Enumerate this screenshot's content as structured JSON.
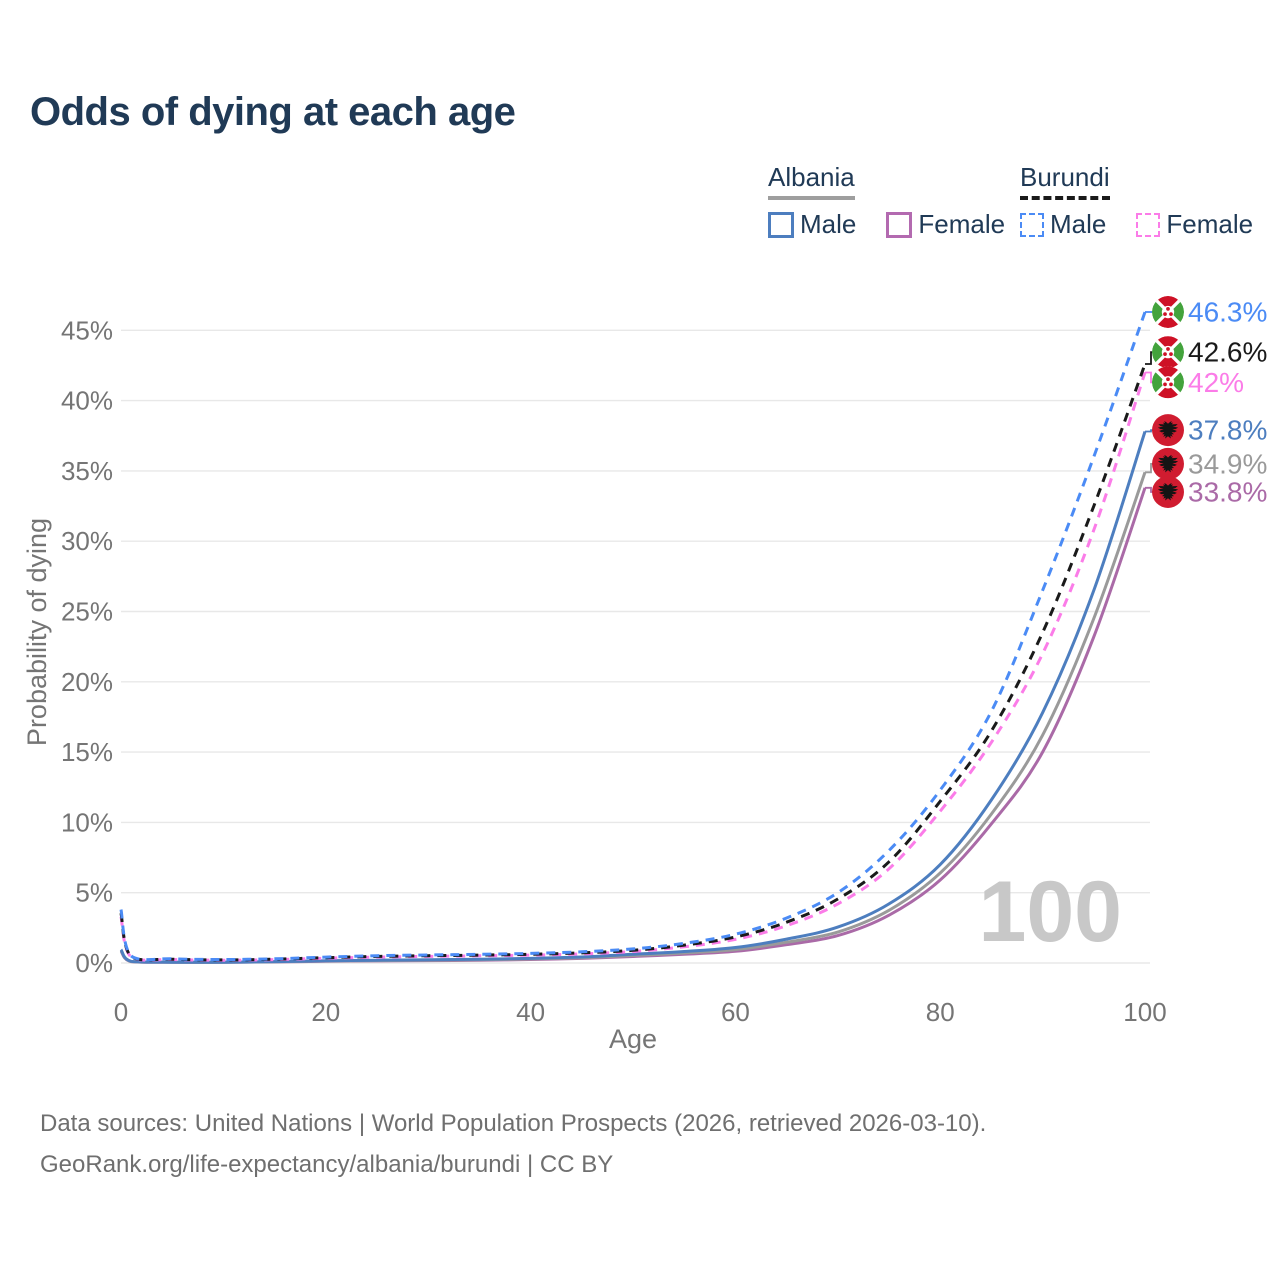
{
  "title": "Odds of dying at each age",
  "legend": {
    "groups": [
      {
        "country": "Albania",
        "line_style": "solid",
        "underline_color": "#9e9e9e",
        "items": [
          {
            "label": "Male",
            "color": "#4d7ebf"
          },
          {
            "label": "Female",
            "color": "#b36ab0"
          }
        ]
      },
      {
        "country": "Burundi",
        "line_style": "dashed",
        "underline_color": "#1a1a1a",
        "items": [
          {
            "label": "Male",
            "color": "#4b8bf5"
          },
          {
            "label": "Female",
            "color": "#fb7ce8"
          }
        ]
      }
    ]
  },
  "chart_data": {
    "type": "line",
    "title": "Odds of dying at each age",
    "xlabel": "Age",
    "ylabel": "Probability of dying",
    "xlim": [
      0,
      100
    ],
    "ylim": [
      0,
      47
    ],
    "grid": "horizontal",
    "legend_position": "top-right",
    "watermark": "100",
    "xticks": [
      0,
      20,
      40,
      60,
      80,
      100
    ],
    "yticks": [
      0,
      5,
      10,
      15,
      20,
      25,
      30,
      35,
      40,
      45
    ],
    "ytick_labels": [
      "0%",
      "5%",
      "10%",
      "15%",
      "20%",
      "25%",
      "30%",
      "35%",
      "40%",
      "45%"
    ],
    "x": [
      0,
      1,
      5,
      10,
      15,
      20,
      25,
      30,
      35,
      40,
      45,
      50,
      55,
      60,
      65,
      70,
      75,
      80,
      85,
      90,
      95,
      100
    ],
    "series": [
      {
        "name": "Burundi Male",
        "country": "burundi",
        "sex": "male",
        "style": "dashed",
        "color": "#4b8bf5",
        "label_color": "#4b8bf5",
        "end_label": "46.3%",
        "end_value": 46.3,
        "label_at": 46.3,
        "values": [
          3.8,
          0.5,
          0.3,
          0.25,
          0.3,
          0.42,
          0.52,
          0.57,
          0.62,
          0.68,
          0.8,
          1.0,
          1.4,
          2.05,
          3.2,
          5.0,
          8.0,
          12.3,
          17.9,
          26.5,
          36.0,
          46.3
        ]
      },
      {
        "name": "Burundi Both sexes",
        "country": "burundi",
        "sex": "both",
        "style": "dashed",
        "color": "#1a1a1a",
        "label_color": "#1a1a1a",
        "end_label": "42.6%",
        "end_value": 42.6,
        "label_at": 43.45,
        "values": [
          3.55,
          0.46,
          0.27,
          0.22,
          0.27,
          0.38,
          0.47,
          0.52,
          0.56,
          0.62,
          0.72,
          0.9,
          1.27,
          1.85,
          2.9,
          4.55,
          7.2,
          11.5,
          16.5,
          23.5,
          32.5,
          42.6
        ]
      },
      {
        "name": "Burundi Female",
        "country": "burundi",
        "sex": "female",
        "style": "dashed",
        "color": "#fb7ce8",
        "label_color": "#fb7ce8",
        "end_label": "42%",
        "end_value": 42.0,
        "label_at": 41.3,
        "values": [
          3.3,
          0.42,
          0.25,
          0.2,
          0.24,
          0.34,
          0.42,
          0.47,
          0.51,
          0.56,
          0.65,
          0.82,
          1.15,
          1.68,
          2.65,
          4.2,
          6.7,
          10.8,
          15.7,
          22.0,
          30.8,
          42.0
        ]
      },
      {
        "name": "Albania Male",
        "country": "albania",
        "sex": "male",
        "style": "solid",
        "color": "#4d7ebf",
        "label_color": "#4d7ebf",
        "end_label": "37.8%",
        "end_value": 37.8,
        "label_at": 37.9,
        "values": [
          0.95,
          0.12,
          0.06,
          0.06,
          0.1,
          0.16,
          0.2,
          0.23,
          0.27,
          0.33,
          0.43,
          0.62,
          0.82,
          1.1,
          1.7,
          2.55,
          4.2,
          7.0,
          11.6,
          17.8,
          26.5,
          37.8
        ]
      },
      {
        "name": "Albania Both sexes",
        "country": "albania",
        "sex": "both",
        "style": "solid",
        "color": "#9a9a9a",
        "label_color": "#9a9a9a",
        "end_label": "34.9%",
        "end_value": 34.9,
        "label_at": 35.5,
        "values": [
          0.9,
          0.11,
          0.06,
          0.05,
          0.09,
          0.14,
          0.17,
          0.2,
          0.23,
          0.29,
          0.38,
          0.53,
          0.71,
          0.95,
          1.48,
          2.2,
          3.75,
          6.4,
          10.6,
          16.2,
          24.5,
          34.9
        ]
      },
      {
        "name": "Albania Female",
        "country": "albania",
        "sex": "female",
        "style": "solid",
        "color": "#aa6aa7",
        "label_color": "#aa6aa7",
        "end_label": "33.8%",
        "end_value": 33.8,
        "label_at": 33.5,
        "values": [
          0.85,
          0.1,
          0.05,
          0.05,
          0.08,
          0.12,
          0.15,
          0.17,
          0.2,
          0.25,
          0.33,
          0.46,
          0.62,
          0.83,
          1.3,
          1.95,
          3.4,
          5.9,
          9.9,
          15.0,
          23.2,
          33.8
        ]
      }
    ]
  },
  "footer": {
    "line1": "Data sources: United Nations | World Population Prospects (2026, retrieved 2026-03-10).",
    "line2": "GeoRank.org/life-expectancy/albania/burundi | CC BY"
  }
}
